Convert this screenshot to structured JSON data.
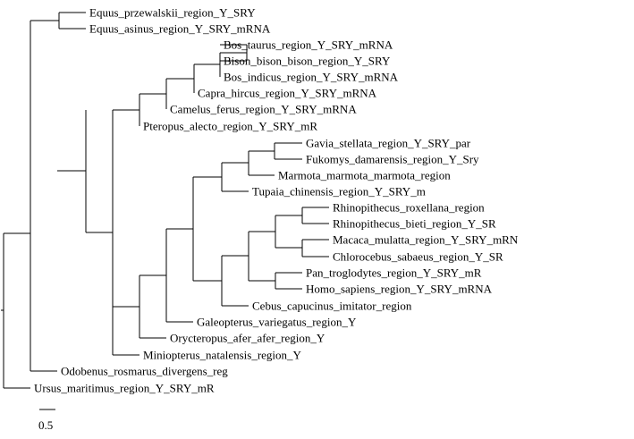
{
  "tree": {
    "leaves": [
      {
        "id": "equus_przewalskii",
        "label": "Equus_przewalskii_region_Y_SRY"
      },
      {
        "id": "equus_asinus",
        "label": "Equus_asinus_region_Y_SRY_mRNA"
      },
      {
        "id": "bos_taurus",
        "label": "Bos_taurus_region_Y_SRY_mRNA"
      },
      {
        "id": "bison_bison",
        "label": "Bison_bison_bison_region_Y_SRY"
      },
      {
        "id": "bos_indicus",
        "label": "Bos_indicus_region_Y_SRY_mRNA"
      },
      {
        "id": "capra_hircus",
        "label": "Capra_hircus_region_Y_SRY_mRNA"
      },
      {
        "id": "camelus_ferus",
        "label": "Camelus_ferus_region_Y_SRY_mRNA"
      },
      {
        "id": "pteropus_alecto",
        "label": "Pteropus_alecto_region_Y_SRY_mR"
      },
      {
        "id": "gavia_stellata",
        "label": "Gavia_stellata_region_Y_SRY_par"
      },
      {
        "id": "fukomys_damarensis",
        "label": "Fukomys_damarensis_region_Y_Sry"
      },
      {
        "id": "marmota_marmota",
        "label": "Marmota_marmota_marmota_region"
      },
      {
        "id": "tupaia_chinensis",
        "label": "Tupaia_chinensis_region_Y_SRY_m"
      },
      {
        "id": "rhinopithecus_roxellana",
        "label": "Rhinopithecus_roxellana_region"
      },
      {
        "id": "rhinopithecus_bieti",
        "label": "Rhinopithecus_bieti_region_Y_SR"
      },
      {
        "id": "macaca_mulatta",
        "label": "Macaca_mulatta_region_Y_SRY_mRN"
      },
      {
        "id": "chlorocebus_sabaeus",
        "label": "Chlorocebus_sabaeus_region_Y_SR"
      },
      {
        "id": "pan_troglodytes",
        "label": "Pan_troglodytes_region_Y_SRY_mR"
      },
      {
        "id": "homo_sapiens",
        "label": "Homo_sapiens_region_Y_SRY_mRNA"
      },
      {
        "id": "cebus_capucinus",
        "label": "Cebus_capucinus_imitator_region"
      },
      {
        "id": "galeopterus_variegatus",
        "label": "Galeopterus_variegatus_region_Y"
      },
      {
        "id": "orycteropus_afer",
        "label": "Orycteropus_afer_afer_region_Y"
      },
      {
        "id": "miniopterus_natalensis",
        "label": "Miniopterus_natalensis_region_Y"
      },
      {
        "id": "odobenus_rosmarus",
        "label": "Odobenus_rosmarus_divergens_reg"
      },
      {
        "id": "ursus_maritimus",
        "label": "Ursus_maritimus_region_Y_SRY_mR"
      }
    ],
    "scale_bar": {
      "label": "0.5",
      "length": 0.5
    }
  }
}
